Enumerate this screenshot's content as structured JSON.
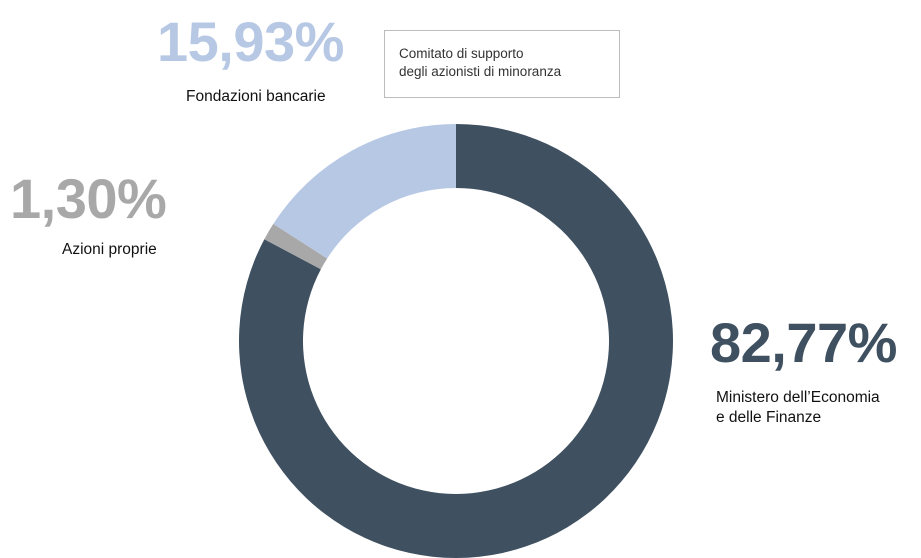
{
  "chart_data": {
    "type": "pie",
    "donut": true,
    "start": "top",
    "direction": "clockwise",
    "slices": [
      {
        "label_lines": [
          "Ministero dell’Economia",
          "e delle Finanze"
        ],
        "value": 82.77,
        "value_text": "82,77%",
        "color": "#3f5061"
      },
      {
        "label_lines": [
          "Azioni proprie"
        ],
        "value": 1.3,
        "value_text": "1,30%",
        "color": "#a8a8a8"
      },
      {
        "label_lines": [
          "Fondazioni bancarie"
        ],
        "value": 15.93,
        "value_text": "15,93%",
        "color": "#b7c8e5"
      }
    ],
    "legend": {
      "lines": [
        "Comitato di supporto",
        "degli azionisti di minoranza"
      ],
      "border_color": "#bdbdbd"
    }
  }
}
